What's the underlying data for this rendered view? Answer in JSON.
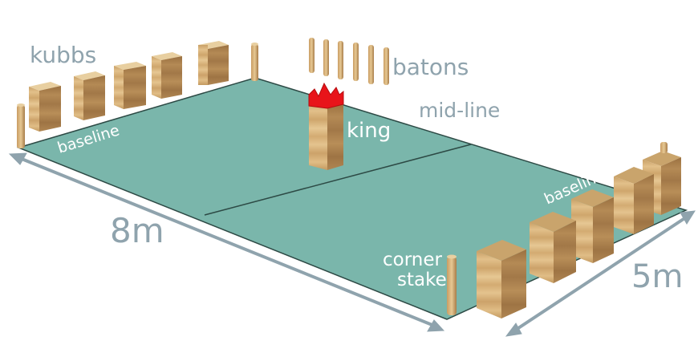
{
  "labels": {
    "kubbs": "kubbs",
    "batons": "batons",
    "mid_line": "mid-line",
    "king": "king",
    "baseline_left": "baseline",
    "baseline_right": "baseline",
    "corner": "corner",
    "stake": "stake",
    "length": "8m",
    "width": "5m"
  },
  "colors": {
    "field": "#7ab6ab",
    "field_edge": "#2d4a45",
    "label_gray": "#8fa3ad",
    "label_white": "#ffffff",
    "wood_front": "#d6b27a",
    "wood_side": "#a67e48",
    "wood_top": "#e8cfa0",
    "crown": "#e8141a"
  }
}
